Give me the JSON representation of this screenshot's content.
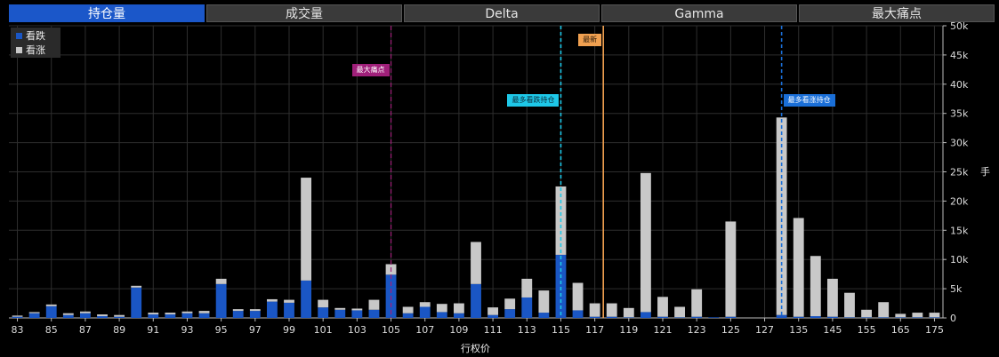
{
  "tabs": [
    "持仓量",
    "成交量",
    "Delta",
    "Gamma",
    "最大痛点"
  ],
  "active_tab": 0,
  "legend": {
    "put": "看跌",
    "call": "看涨"
  },
  "colors": {
    "put": "#1a56c4",
    "call": "#c8c8c8",
    "grid": "#2e2e2e",
    "axis": "#bbbbbb"
  },
  "markers": {
    "max_pain": {
      "label": "最大痛点",
      "strike": "105",
      "color": "#a0207a"
    },
    "latest": {
      "label": "最新",
      "strike": "117",
      "offset": 0.5,
      "color": "#f0a050"
    },
    "max_put": {
      "label": "最多看跌持仓",
      "strike": "115",
      "color": "#1ec8e8"
    },
    "max_call": {
      "label": "最多看涨持仓",
      "strike": "130",
      "color": "#1a6fd8"
    }
  },
  "chart_data": {
    "type": "bar",
    "stacked": true,
    "xlabel": "行权价",
    "ylabel": "手",
    "ylim": [
      0,
      50000
    ],
    "yticks": [
      0,
      5000,
      10000,
      15000,
      20000,
      25000,
      30000,
      35000,
      40000,
      45000,
      50000
    ],
    "ytick_labels": [
      "0",
      "5k",
      "10k",
      "15k",
      "20k",
      "25k",
      "30k",
      "35k",
      "40k",
      "45k",
      "50k"
    ],
    "x_tick_labels": [
      "83",
      "85",
      "87",
      "89",
      "91",
      "93",
      "95",
      "97",
      "99",
      "101",
      "103",
      "105",
      "107",
      "109",
      "111",
      "113",
      "115",
      "117",
      "119",
      "121",
      "123",
      "125",
      "127",
      "135",
      "145",
      "155",
      "165",
      "175"
    ],
    "categories": [
      "83",
      "84",
      "85",
      "86",
      "87",
      "88",
      "89",
      "90",
      "91",
      "92",
      "93",
      "94",
      "95",
      "96",
      "97",
      "98",
      "99",
      "100",
      "101",
      "102",
      "103",
      "104",
      "105",
      "106",
      "107",
      "108",
      "109",
      "110",
      "111",
      "112",
      "113",
      "114",
      "115",
      "116",
      "117",
      "118",
      "119",
      "120",
      "121",
      "122",
      "123",
      "124",
      "125",
      "126",
      "127",
      "130",
      "135",
      "140",
      "145",
      "150",
      "155",
      "160",
      "165",
      "170",
      "175"
    ],
    "series": [
      {
        "name": "看跌",
        "values": [
          200,
          800,
          2000,
          500,
          800,
          300,
          200,
          5200,
          600,
          600,
          800,
          800,
          5800,
          1200,
          1200,
          2800,
          2600,
          6400,
          1800,
          1400,
          1300,
          1400,
          7400,
          800,
          1900,
          1000,
          800,
          5800,
          500,
          1500,
          3500,
          900,
          10800,
          1300,
          200,
          200,
          100,
          1000,
          200,
          100,
          200,
          100,
          200,
          0,
          0,
          500,
          200,
          300,
          200,
          100,
          100,
          100,
          100,
          100,
          100
        ]
      },
      {
        "name": "看涨",
        "values": [
          200,
          200,
          300,
          300,
          300,
          300,
          300,
          300,
          300,
          300,
          300,
          400,
          900,
          300,
          300,
          400,
          500,
          17600,
          1300,
          300,
          300,
          1700,
          1800,
          1100,
          800,
          1400,
          1700,
          7200,
          1300,
          1800,
          3200,
          3800,
          11700,
          4700,
          2300,
          2300,
          1600,
          23800,
          3400,
          1800,
          4700,
          0,
          16300,
          0,
          0,
          33800,
          16900,
          10300,
          6500,
          4200,
          1300,
          2600,
          600,
          800,
          800
        ]
      }
    ]
  }
}
